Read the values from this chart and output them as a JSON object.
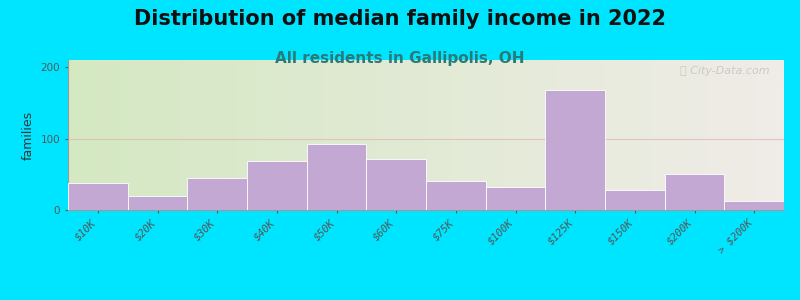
{
  "title": "Distribution of median family income in 2022",
  "subtitle": "All residents in Gallipolis, OH",
  "ylabel": "families",
  "categories": [
    "$10K",
    "$20K",
    "$30K",
    "$40K",
    "$50K",
    "$60K",
    "$75K",
    "$100K",
    "$125K",
    "$150K",
    "$200K",
    "> $200K"
  ],
  "values": [
    38,
    20,
    45,
    68,
    93,
    72,
    40,
    32,
    168,
    28,
    50,
    12
  ],
  "bar_color": "#c4a8d4",
  "ylim": [
    0,
    210
  ],
  "yticks": [
    0,
    100,
    200
  ],
  "background_outer": "#00e5ff",
  "bg_gradient_left": "#d4e8c2",
  "bg_gradient_right": "#f0ece8",
  "grid_color": "#e8b0b0",
  "title_fontsize": 15,
  "subtitle_fontsize": 11,
  "subtitle_color": "#2a7a7a",
  "ylabel_fontsize": 9,
  "tick_labelsize": 7.5,
  "watermark": "ⓘ City-Data.com"
}
